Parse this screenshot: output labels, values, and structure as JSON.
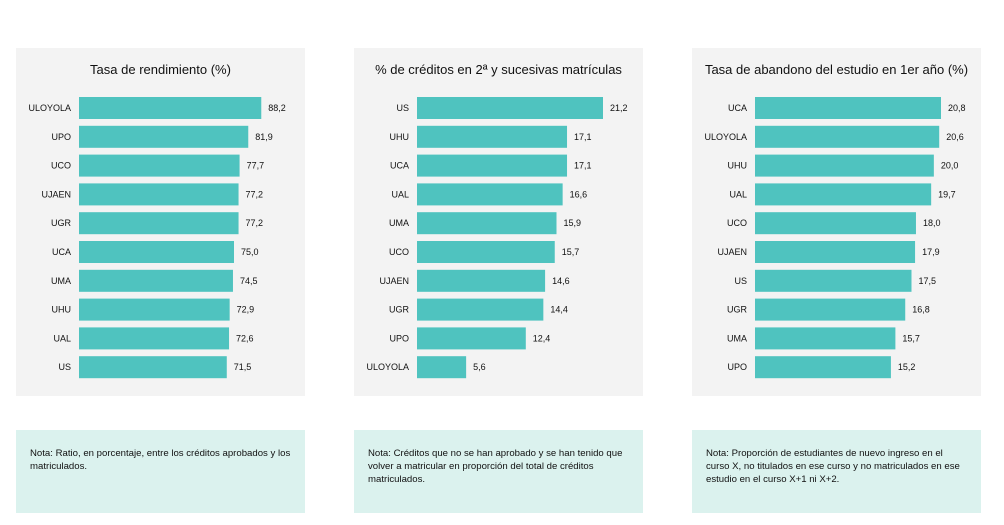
{
  "chart_data": [
    {
      "type": "bar",
      "orientation": "horizontal",
      "title": "Tasa de rendimiento (%)",
      "categories": [
        "ULOYOLA",
        "UPO",
        "UCO",
        "UJAEN",
        "UGR",
        "UCA",
        "UMA",
        "UHU",
        "UAL",
        "US"
      ],
      "values": [
        88.2,
        81.9,
        77.7,
        77.2,
        77.2,
        75.0,
        74.5,
        72.9,
        72.6,
        71.5
      ],
      "value_labels": [
        "88,2",
        "81,9",
        "77,7",
        "77,2",
        "77,2",
        "75,0",
        "74,5",
        "72,9",
        "72,6",
        "71,5"
      ],
      "xlim": [
        0,
        90
      ],
      "bar_color": "#4fc3bf",
      "grid": false
    },
    {
      "type": "bar",
      "orientation": "horizontal",
      "title": "% de créditos en 2ª y sucesivas matrículas",
      "categories": [
        "US",
        "UHU",
        "UCA",
        "UAL",
        "UMA",
        "UCO",
        "UJAEN",
        "UGR",
        "UPO",
        "ULOYOLA"
      ],
      "values": [
        21.2,
        17.1,
        17.1,
        16.6,
        15.9,
        15.7,
        14.6,
        14.4,
        12.4,
        5.6
      ],
      "value_labels": [
        "21,2",
        "17,1",
        "17,1",
        "16,6",
        "15,9",
        "15,7",
        "14,6",
        "14,4",
        "12,4",
        "5,6"
      ],
      "xlim": [
        0,
        21.2
      ],
      "bar_color": "#4fc3bf",
      "grid": false
    },
    {
      "type": "bar",
      "orientation": "horizontal",
      "title": "Tasa de abandono del estudio en 1er año (%)",
      "categories": [
        "UCA",
        "ULOYOLA",
        "UHU",
        "UAL",
        "UCO",
        "UJAEN",
        "US",
        "UGR",
        "UMA",
        "UPO"
      ],
      "values": [
        20.8,
        20.6,
        20.0,
        19.7,
        18.0,
        17.9,
        17.5,
        16.8,
        15.7,
        15.2
      ],
      "value_labels": [
        "20,8",
        "20,6",
        "20,0",
        "19,7",
        "18,0",
        "17,9",
        "17,5",
        "16,8",
        "15,7",
        "15,2"
      ],
      "xlim": [
        0,
        20.8
      ],
      "bar_color": "#4fc3bf",
      "grid": false
    }
  ],
  "notes": [
    "Nota: Ratio, en porcentaje, entre los créditos aprobados y los matriculados.",
    "Nota: Créditos que no se han aprobado y se han tenido que volver a matricular en proporción del total de créditos matriculados.",
    "Nota: Proporción de estudiantes de nuevo ingreso en el curso X, no titulados en ese curso y no matriculados en ese estudio en el curso X+1 ni X+2."
  ],
  "colors": {
    "panel_background": "#f3f3f3",
    "note_background": "#dbf2ee",
    "bar": "#4fc3bf"
  }
}
